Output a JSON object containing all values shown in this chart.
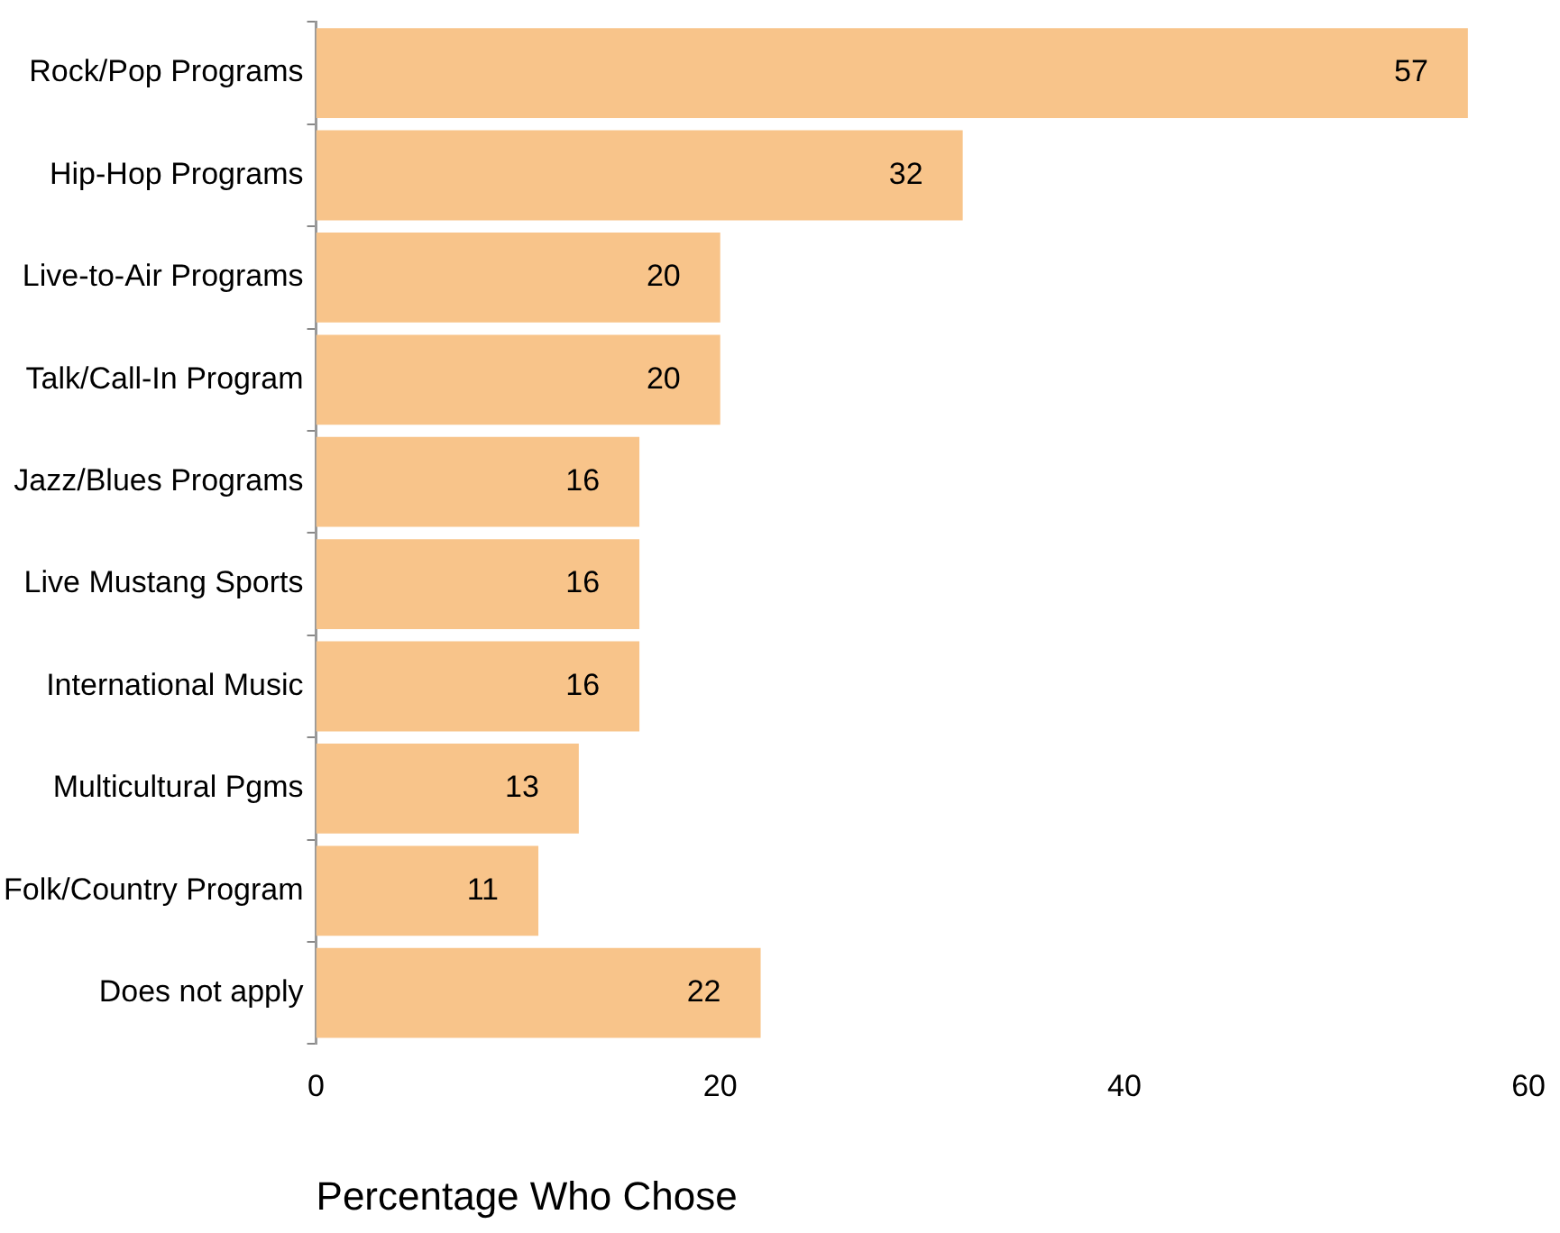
{
  "chart_data": {
    "type": "bar",
    "orientation": "horizontal",
    "xlabel": "Percentage Who Chose",
    "categories": [
      "Rock/Pop Programs",
      "Hip-Hop Programs",
      "Live-to-Air Programs",
      "Talk/Call-In Program",
      "Jazz/Blues Programs",
      "Live Mustang Sports",
      "International Music",
      "Multicultural Pgms",
      "Folk/Country Program",
      "Does not apply"
    ],
    "values": [
      57,
      32,
      20,
      20,
      16,
      16,
      16,
      13,
      11,
      22
    ],
    "color": "#f8c48a",
    "xlim": [
      0,
      60
    ],
    "xticks": [
      0,
      20,
      40,
      60
    ],
    "grid": false,
    "legend": false,
    "data_labels": true
  }
}
